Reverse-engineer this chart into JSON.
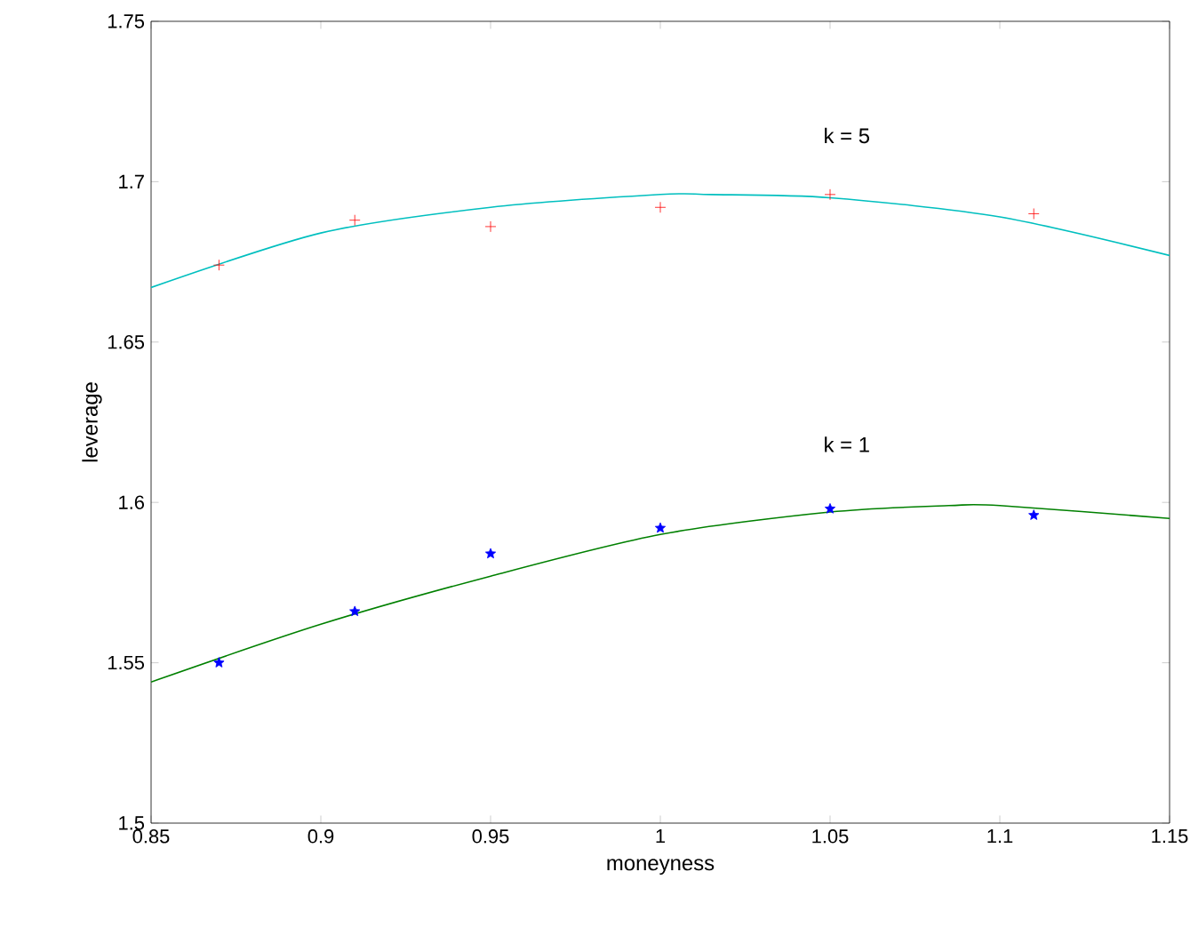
{
  "chart_data": {
    "type": "scatter",
    "xlabel": "moneyness",
    "ylabel": "leverage",
    "xlim": [
      0.85,
      1.15
    ],
    "ylim": [
      1.5,
      1.75
    ],
    "xticks": [
      0.85,
      0.9,
      0.95,
      1,
      1.05,
      1.1,
      1.15
    ],
    "yticks": [
      1.5,
      1.55,
      1.6,
      1.65,
      1.7,
      1.75
    ],
    "grid": false,
    "series": [
      {
        "type": "line",
        "color": "#00bfbf",
        "marker": "none",
        "x": [
          0.85,
          0.9,
          0.95,
          1.0,
          1.015,
          1.05,
          1.1,
          1.15
        ],
        "values": [
          1.667,
          1.684,
          1.692,
          1.696,
          1.696,
          1.695,
          1.689,
          1.677
        ]
      },
      {
        "type": "line",
        "color": "#008000",
        "marker": "none",
        "x": [
          0.85,
          0.9,
          0.95,
          1.0,
          1.05,
          1.085,
          1.1,
          1.15
        ],
        "values": [
          1.544,
          1.562,
          1.577,
          1.59,
          1.597,
          1.599,
          1.599,
          1.595
        ]
      },
      {
        "color": "#ff0000",
        "marker": "cross",
        "x": [
          0.87,
          0.91,
          0.95,
          1.0,
          1.05,
          1.11
        ],
        "values": [
          1.674,
          1.688,
          1.686,
          1.692,
          1.696,
          1.69
        ]
      },
      {
        "color": "#0000ff",
        "marker": "star",
        "x": [
          0.87,
          0.91,
          0.95,
          1.0,
          1.05,
          1.11
        ],
        "values": [
          1.55,
          1.566,
          1.584,
          1.592,
          1.598,
          1.596
        ]
      }
    ],
    "annotations": [
      "k = 5",
      "k = 1"
    ]
  }
}
